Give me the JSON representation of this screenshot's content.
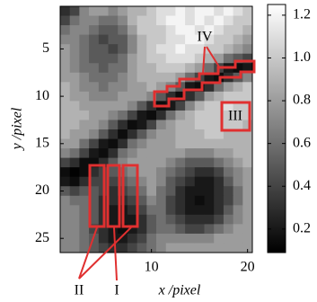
{
  "chart_data": {
    "type": "heatmap",
    "colormap": "gray",
    "xlabel": "x /pixel",
    "ylabel": "y /pixel",
    "x": [
      1,
      2,
      3,
      4,
      5,
      6,
      7,
      8,
      9,
      10,
      11,
      12,
      13,
      14,
      15,
      16,
      17,
      18,
      19,
      20
    ],
    "y": [
      1,
      2,
      3,
      4,
      5,
      6,
      7,
      8,
      9,
      10,
      11,
      12,
      13,
      14,
      15,
      16,
      17,
      18,
      19,
      20,
      21,
      22,
      23,
      24,
      25,
      26
    ],
    "xlim": [
      0.5,
      20.5
    ],
    "ylim": [
      0.5,
      26.5
    ],
    "xticks": [
      10,
      20
    ],
    "yticks": [
      5,
      10,
      15,
      20,
      25
    ],
    "clim": [
      0.09,
      1.25
    ],
    "cticks": [
      0.2,
      0.4,
      0.6,
      0.8,
      {
        "value": 1,
        "label": "1.0"
      },
      1.2
    ],
    "annotations": [
      "I",
      "II",
      "III",
      "IV"
    ],
    "values": [
      [
        0.3,
        0.4,
        0.7,
        0.8,
        0.8,
        0.7,
        0.8,
        0.9,
        0.9,
        1.0,
        1.1,
        1.1,
        1.2,
        1.1,
        1.2,
        1.2,
        1.1,
        1.2,
        1.1,
        1.0
      ],
      [
        0.4,
        0.6,
        0.7,
        0.7,
        0.6,
        0.6,
        0.7,
        0.9,
        1.0,
        1.0,
        1.1,
        1.2,
        1.2,
        1.1,
        1.2,
        1.1,
        1.2,
        1.1,
        1.0,
        1.0
      ],
      [
        0.6,
        0.7,
        0.7,
        0.6,
        0.5,
        0.5,
        0.6,
        0.8,
        1.0,
        1.0,
        1.0,
        1.1,
        1.2,
        1.2,
        1.1,
        1.2,
        1.1,
        1.0,
        1.0,
        0.9
      ],
      [
        0.7,
        0.7,
        0.6,
        0.5,
        0.4,
        0.5,
        0.5,
        0.7,
        0.9,
        1.0,
        1.0,
        1.1,
        1.1,
        1.2,
        1.2,
        1.1,
        1.0,
        1.0,
        0.9,
        0.8
      ],
      [
        0.8,
        0.7,
        0.6,
        0.5,
        0.5,
        0.4,
        0.5,
        0.7,
        0.9,
        1.0,
        1.1,
        1.1,
        1.2,
        1.1,
        1.1,
        1.0,
        1.0,
        0.9,
        0.8,
        0.7
      ],
      [
        0.8,
        0.7,
        0.6,
        0.5,
        0.5,
        0.5,
        0.6,
        0.8,
        0.9,
        1.0,
        1.0,
        1.1,
        1.1,
        1.1,
        1.0,
        0.9,
        0.8,
        0.6,
        0.5,
        0.4
      ],
      [
        0.8,
        0.7,
        0.6,
        0.6,
        0.5,
        0.6,
        0.6,
        0.8,
        0.9,
        0.9,
        1.0,
        1.0,
        1.0,
        0.9,
        0.8,
        0.6,
        0.4,
        0.2,
        0.15,
        0.2
      ],
      [
        0.8,
        0.8,
        0.7,
        0.6,
        0.6,
        0.6,
        0.7,
        0.8,
        0.9,
        0.9,
        0.9,
        0.9,
        0.8,
        0.6,
        0.4,
        0.2,
        0.15,
        0.3,
        0.5,
        0.7
      ],
      [
        0.9,
        0.8,
        0.7,
        0.7,
        0.6,
        0.7,
        0.7,
        0.8,
        0.8,
        0.9,
        0.8,
        0.7,
        0.5,
        0.2,
        0.15,
        0.3,
        0.6,
        0.8,
        0.9,
        1.0
      ],
      [
        0.9,
        0.8,
        0.8,
        0.7,
        0.7,
        0.7,
        0.8,
        0.8,
        0.8,
        0.7,
        0.5,
        0.3,
        0.15,
        0.3,
        0.5,
        0.8,
        0.9,
        1.0,
        1.0,
        1.0
      ],
      [
        0.9,
        0.9,
        0.8,
        0.8,
        0.8,
        0.8,
        0.8,
        0.7,
        0.5,
        0.3,
        0.15,
        0.2,
        0.4,
        0.7,
        0.9,
        1.0,
        1.0,
        1.1,
        1.0,
        1.0
      ],
      [
        0.9,
        0.9,
        0.9,
        0.8,
        0.8,
        0.7,
        0.6,
        0.4,
        0.2,
        0.15,
        0.3,
        0.6,
        0.8,
        0.9,
        1.0,
        1.0,
        1.0,
        1.0,
        1.0,
        1.0
      ],
      [
        0.9,
        0.9,
        0.8,
        0.8,
        0.7,
        0.5,
        0.3,
        0.15,
        0.2,
        0.4,
        0.7,
        0.8,
        0.9,
        0.9,
        1.0,
        1.0,
        1.0,
        1.0,
        1.0,
        0.9
      ],
      [
        0.9,
        0.8,
        0.8,
        0.7,
        0.5,
        0.3,
        0.15,
        0.3,
        0.5,
        0.7,
        0.8,
        0.8,
        0.9,
        0.9,
        0.9,
        1.0,
        1.0,
        0.9,
        0.9,
        0.9
      ],
      [
        0.8,
        0.8,
        0.6,
        0.4,
        0.2,
        0.15,
        0.3,
        0.6,
        0.7,
        0.8,
        0.8,
        0.8,
        0.9,
        0.9,
        0.9,
        0.9,
        0.9,
        0.9,
        0.9,
        0.9
      ],
      [
        0.7,
        0.6,
        0.4,
        0.2,
        0.15,
        0.3,
        0.6,
        0.7,
        0.8,
        0.8,
        0.8,
        0.8,
        0.8,
        0.7,
        0.7,
        0.7,
        0.8,
        0.8,
        0.9,
        0.9
      ],
      [
        0.4,
        0.3,
        0.15,
        0.15,
        0.3,
        0.5,
        0.7,
        0.8,
        0.8,
        0.8,
        0.8,
        0.7,
        0.6,
        0.5,
        0.5,
        0.5,
        0.6,
        0.7,
        0.8,
        0.9
      ],
      [
        0.15,
        0.1,
        0.15,
        0.3,
        0.4,
        0.5,
        0.6,
        0.7,
        0.8,
        0.8,
        0.7,
        0.6,
        0.5,
        0.4,
        0.3,
        0.3,
        0.4,
        0.6,
        0.7,
        0.8
      ],
      [
        0.2,
        0.15,
        0.3,
        0.4,
        0.4,
        0.4,
        0.5,
        0.6,
        0.7,
        0.8,
        0.7,
        0.5,
        0.4,
        0.3,
        0.2,
        0.2,
        0.3,
        0.5,
        0.7,
        0.8
      ],
      [
        0.5,
        0.4,
        0.5,
        0.5,
        0.4,
        0.3,
        0.4,
        0.5,
        0.6,
        0.8,
        0.6,
        0.5,
        0.3,
        0.2,
        0.2,
        0.2,
        0.3,
        0.4,
        0.6,
        0.8
      ],
      [
        0.7,
        0.6,
        0.6,
        0.5,
        0.3,
        0.3,
        0.3,
        0.4,
        0.5,
        0.7,
        0.6,
        0.4,
        0.3,
        0.2,
        0.15,
        0.2,
        0.3,
        0.4,
        0.6,
        0.8
      ],
      [
        0.7,
        0.7,
        0.6,
        0.5,
        0.3,
        0.2,
        0.2,
        0.3,
        0.4,
        0.6,
        0.6,
        0.4,
        0.3,
        0.2,
        0.2,
        0.2,
        0.3,
        0.5,
        0.7,
        0.8
      ],
      [
        0.7,
        0.7,
        0.6,
        0.5,
        0.3,
        0.2,
        0.2,
        0.2,
        0.3,
        0.5,
        0.6,
        0.5,
        0.4,
        0.3,
        0.3,
        0.3,
        0.4,
        0.6,
        0.7,
        0.8
      ],
      [
        0.7,
        0.7,
        0.6,
        0.4,
        0.3,
        0.2,
        0.15,
        0.2,
        0.3,
        0.5,
        0.6,
        0.6,
        0.5,
        0.4,
        0.4,
        0.5,
        0.6,
        0.7,
        0.8,
        0.8
      ],
      [
        0.7,
        0.7,
        0.6,
        0.5,
        0.3,
        0.2,
        0.2,
        0.3,
        0.4,
        0.6,
        0.7,
        0.7,
        0.7,
        0.7,
        0.7,
        0.7,
        0.8,
        0.8,
        0.8,
        0.8
      ],
      [
        0.7,
        0.7,
        0.6,
        0.5,
        0.4,
        0.3,
        0.3,
        0.4,
        0.5,
        0.6,
        0.7,
        0.8,
        0.8,
        0.8,
        0.8,
        0.8,
        0.8,
        0.8,
        0.8,
        0.8
      ]
    ]
  }
}
